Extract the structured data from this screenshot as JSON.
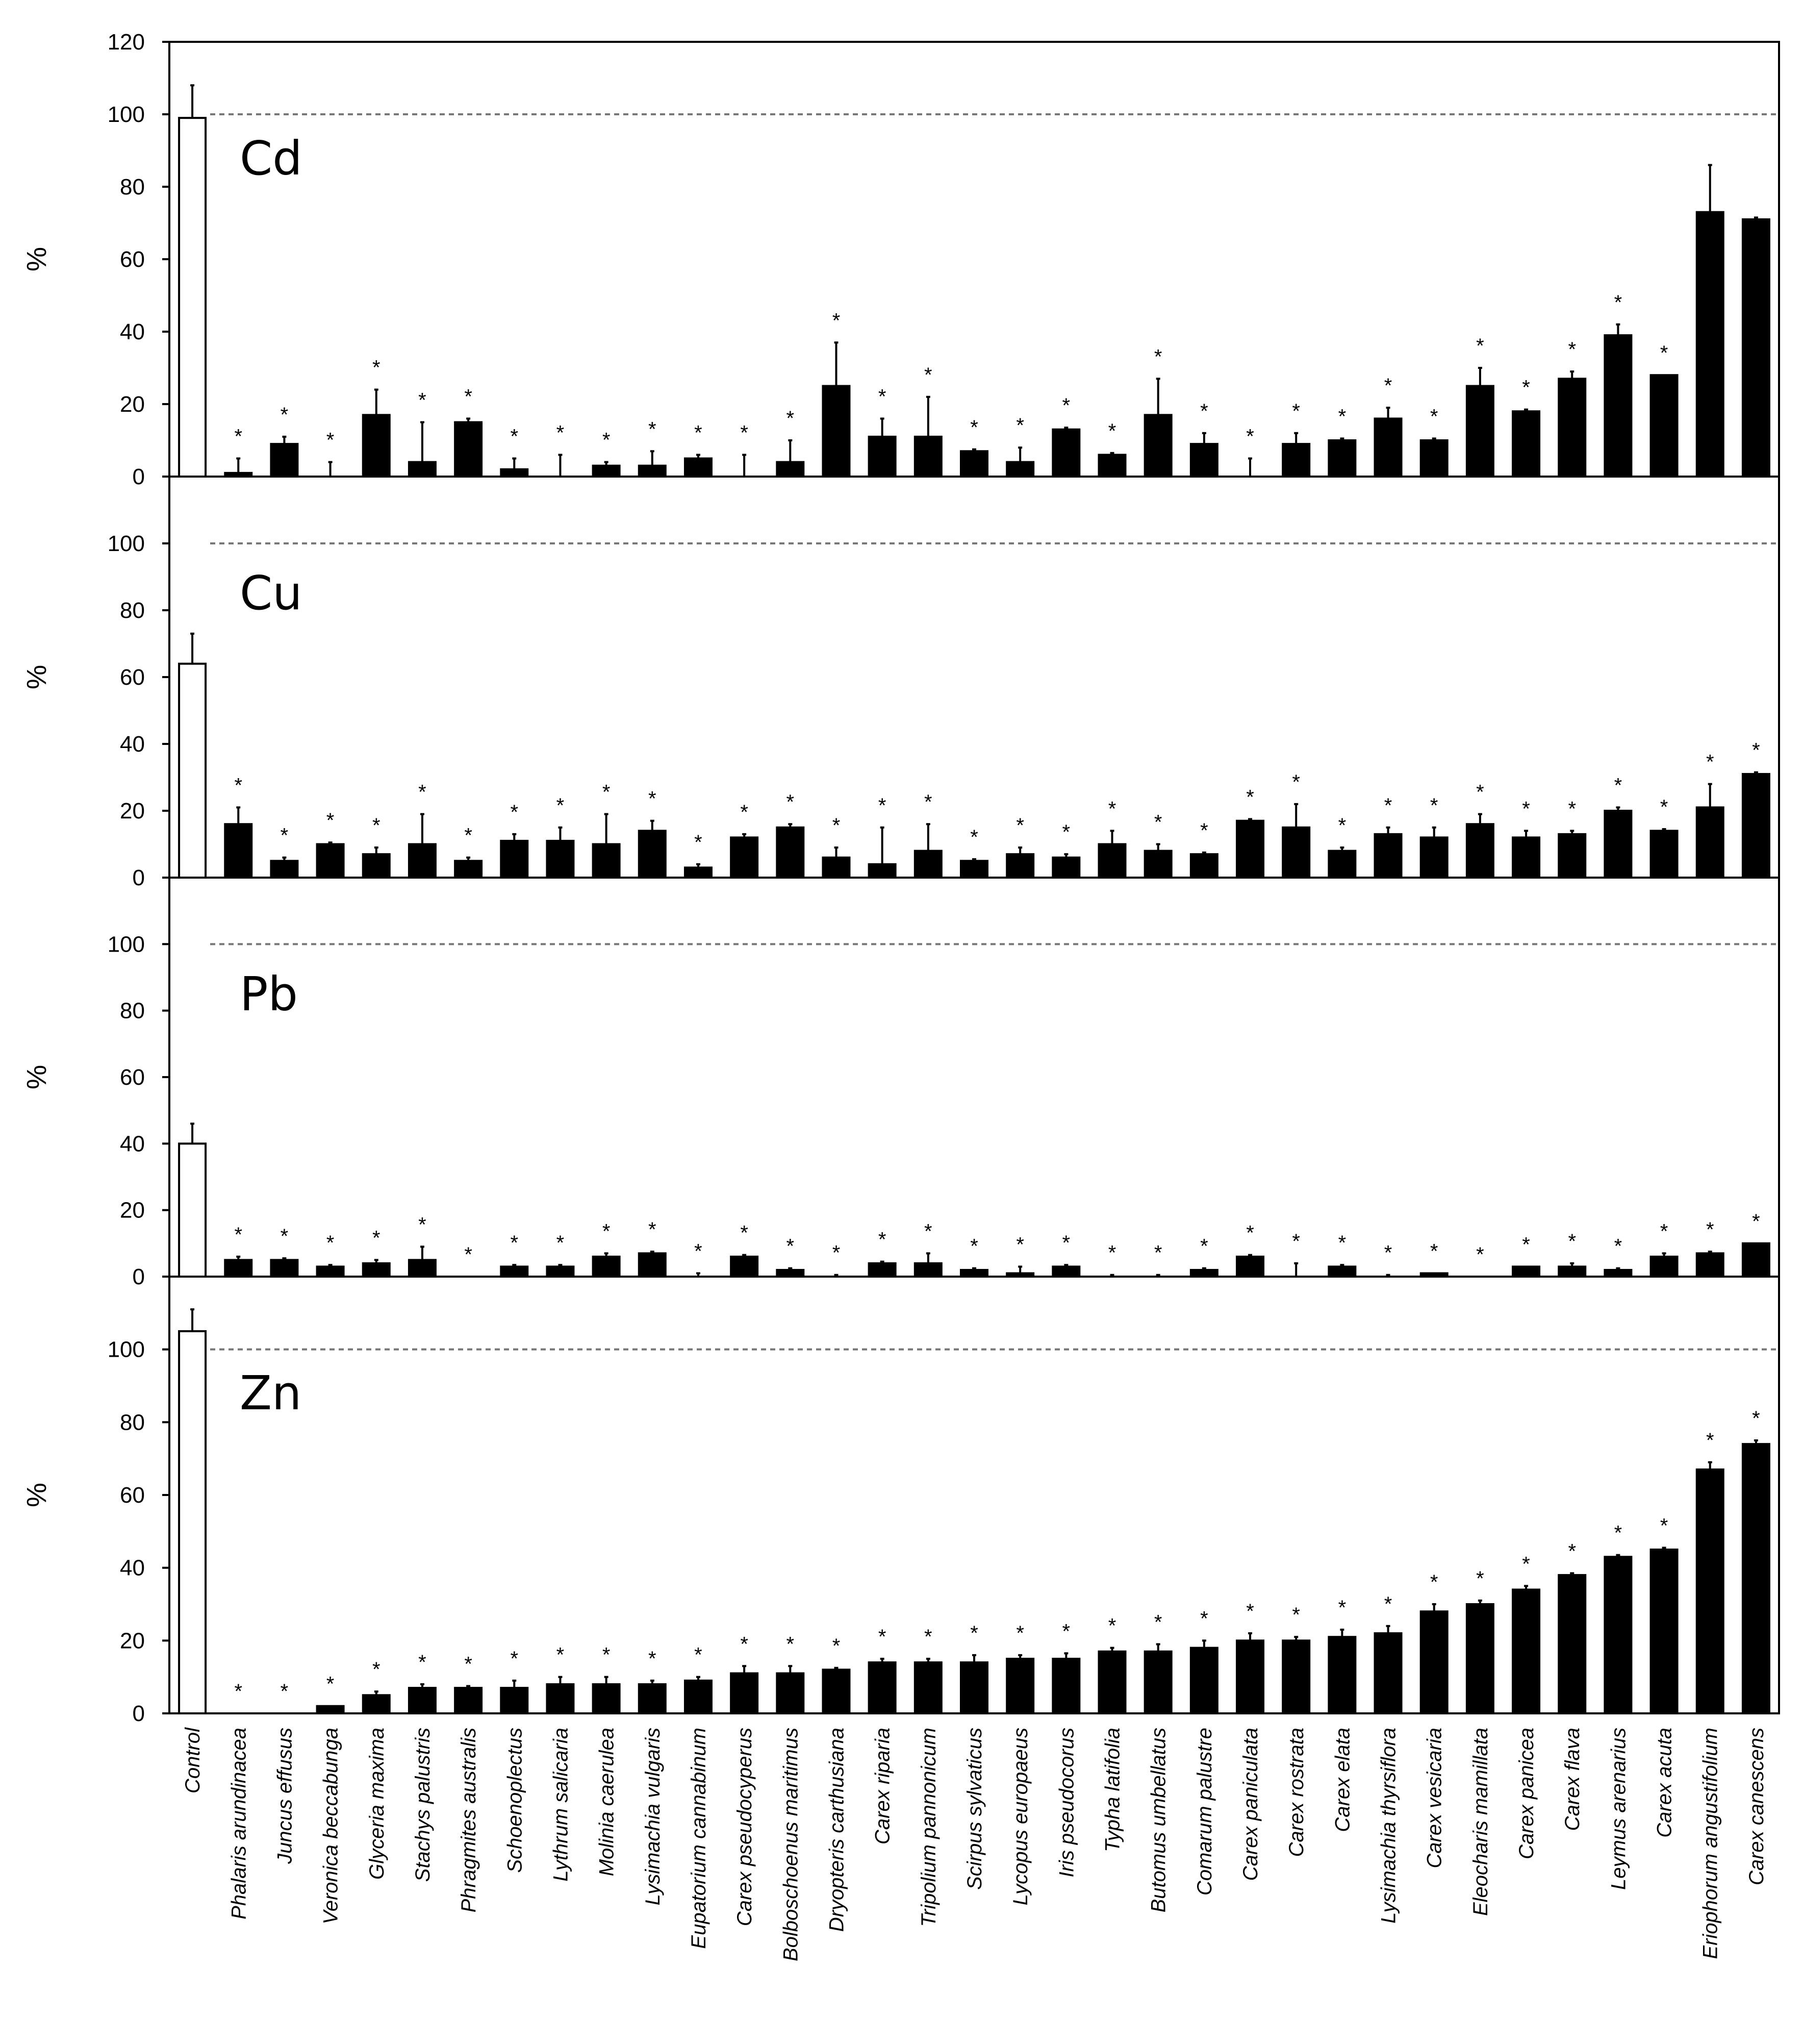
{
  "chart_data": [
    {
      "type": "bar",
      "label": "Cd",
      "y_label": "%",
      "ylim": [
        0,
        120
      ],
      "yticks": [
        0,
        20,
        40,
        60,
        80,
        100,
        120
      ],
      "reference": 100,
      "values": [
        99,
        1,
        9,
        0,
        17,
        4,
        15,
        2,
        0,
        3,
        3,
        5,
        0,
        4,
        25,
        11,
        11,
        7,
        4,
        13,
        6,
        17,
        9,
        0,
        9,
        10,
        16,
        10,
        25,
        18,
        27,
        39,
        28,
        73,
        71
      ],
      "errors": [
        9,
        4,
        2,
        4,
        7,
        11,
        1,
        3,
        6,
        1,
        4,
        1,
        6,
        6,
        12,
        5,
        11,
        0.5,
        4,
        0.5,
        0.5,
        10,
        3,
        5,
        3,
        0.5,
        3,
        0.5,
        5,
        0.5,
        2,
        3,
        0,
        13,
        0.5
      ],
      "markers": [
        null,
        "*",
        "*",
        "*",
        "*",
        "*",
        "*",
        "*",
        "*",
        "*",
        "*",
        "*",
        "*",
        "*",
        "*",
        "*",
        "*",
        "*",
        "*",
        "*",
        "*",
        "*",
        "*",
        "*",
        "*",
        "*",
        "*",
        "*",
        "*",
        "*",
        "*",
        "*",
        "*",
        null,
        null
      ],
      "colors": [
        "#ffffff",
        "#000000",
        "#000000",
        "#000000",
        "#000000",
        "#000000",
        "#000000",
        "#000000",
        "#000000",
        "#000000",
        "#000000",
        "#000000",
        "#000000",
        "#000000",
        "#000000",
        "#000000",
        "#000000",
        "#000000",
        "#000000",
        "#000000",
        "#000000",
        "#000000",
        "#000000",
        "#000000",
        "#000000",
        "#000000",
        "#000000",
        "#000000",
        "#000000",
        "#000000",
        "#000000",
        "#000000",
        "#000000",
        "#000000",
        "#000000"
      ]
    },
    {
      "type": "bar",
      "label": "Cu",
      "y_label": "%",
      "ylim": [
        0,
        120
      ],
      "yticks": [
        0,
        20,
        40,
        60,
        80,
        100
      ],
      "reference": 100,
      "values": [
        64,
        16,
        5,
        10,
        7,
        10,
        5,
        11,
        11,
        10,
        14,
        3,
        12,
        15,
        6,
        4,
        8,
        5,
        7,
        6,
        10,
        8,
        7,
        17,
        15,
        8,
        13,
        12,
        16,
        12,
        13,
        20,
        14,
        21,
        31
      ],
      "errors": [
        9,
        5,
        1,
        0.5,
        2,
        9,
        1,
        2,
        4,
        9,
        3,
        1,
        1,
        1,
        3,
        11,
        8,
        0.5,
        2,
        1,
        4,
        2,
        0.5,
        0.5,
        7,
        1,
        2,
        3,
        3,
        2,
        1,
        1,
        0.5,
        7,
        0.5
      ],
      "markers": [
        null,
        "*",
        "*",
        "*",
        "*",
        "*",
        "*",
        "*",
        "*",
        "*",
        "*",
        "*",
        "*",
        "*",
        "*",
        "*",
        "*",
        "*",
        "*",
        "*",
        "*",
        "*",
        "*",
        "*",
        "*",
        "*",
        "*",
        "*",
        "*",
        "*",
        "*",
        "*",
        "*",
        "*",
        "*"
      ],
      "colors": [
        "#ffffff",
        "#000000",
        "#000000",
        "#000000",
        "#000000",
        "#000000",
        "#000000",
        "#000000",
        "#000000",
        "#000000",
        "#000000",
        "#000000",
        "#000000",
        "#000000",
        "#000000",
        "#000000",
        "#000000",
        "#000000",
        "#000000",
        "#000000",
        "#000000",
        "#000000",
        "#000000",
        "#000000",
        "#000000",
        "#000000",
        "#000000",
        "#000000",
        "#000000",
        "#000000",
        "#000000",
        "#000000",
        "#000000",
        "#000000",
        "#000000"
      ]
    },
    {
      "type": "bar",
      "label": "Pb",
      "y_label": "%",
      "ylim": [
        0,
        120
      ],
      "yticks": [
        0,
        20,
        40,
        60,
        80,
        100
      ],
      "reference": 100,
      "values": [
        40,
        5,
        5,
        3,
        4,
        5,
        0,
        3,
        3,
        6,
        7,
        0,
        6,
        2,
        0,
        4,
        4,
        2,
        1,
        3,
        0,
        0,
        2,
        6,
        0,
        3,
        0,
        1,
        0,
        3,
        3,
        2,
        6,
        7,
        10
      ],
      "errors": [
        6,
        1,
        0.5,
        0.5,
        1,
        4,
        0,
        0.5,
        0.5,
        1,
        0.5,
        1,
        0.5,
        0.5,
        0.5,
        0.5,
        3,
        0.5,
        2,
        0.5,
        0.5,
        0.5,
        0.5,
        0.5,
        4,
        0.5,
        0.5,
        0,
        0,
        0,
        1,
        0.5,
        1,
        0.5,
        0
      ],
      "markers": [
        null,
        "*",
        "*",
        "*",
        "*",
        "*",
        "*",
        "*",
        "*",
        "*",
        "*",
        "*",
        "*",
        "*",
        "*",
        "*",
        "*",
        "*",
        "*",
        "*",
        "*",
        "*",
        "*",
        "*",
        "*",
        "*",
        "*",
        "*",
        "*",
        "*",
        "*",
        "*",
        "*",
        "*",
        "*"
      ],
      "colors": [
        "#ffffff",
        "#000000",
        "#000000",
        "#000000",
        "#000000",
        "#000000",
        "#000000",
        "#000000",
        "#000000",
        "#000000",
        "#000000",
        "#000000",
        "#000000",
        "#000000",
        "#000000",
        "#000000",
        "#000000",
        "#000000",
        "#000000",
        "#000000",
        "#000000",
        "#000000",
        "#000000",
        "#000000",
        "#000000",
        "#000000",
        "#000000",
        "#000000",
        "#000000",
        "#000000",
        "#000000",
        "#000000",
        "#000000",
        "#000000",
        "#000000"
      ]
    },
    {
      "type": "bar",
      "label": "Zn",
      "y_label": "%",
      "ylim": [
        0,
        120
      ],
      "yticks": [
        0,
        20,
        40,
        60,
        80,
        100
      ],
      "reference": 100,
      "categories": [
        "Control",
        "Phalaris arundinacea",
        "Juncus effusus",
        "Veronica beccabunga",
        "Glyceria maxima",
        "Stachys palustris",
        "Phragmites australis",
        "Schoenoplectus",
        "Lythrum salicaria",
        "Molinia caerulea",
        "Lysimachia vulgaris",
        "Eupatorium cannabinum",
        "Carex pseudocyperus",
        "Bolboschoenus maritimus",
        "Dryopteris carthusiana",
        "Carex riparia",
        "Tripolium pannonicum",
        "Scirpus sylvaticus",
        "Lycopus europaeus",
        "Iris pseudocorus",
        "Typha latifolia",
        "Butomus umbellatus",
        "Comarum palustre",
        "Carex paniculata",
        "Carex rostrata",
        "Carex elata",
        "Lysimachia thyrsiflora",
        "Carex vesicaria",
        "Eleocharis mamillata",
        "Carex panicea",
        "Carex flava",
        "Leymus arenarius",
        "Carex acuta",
        "Eriophorum angustifolium",
        "Carex canescens"
      ],
      "values": [
        105,
        0,
        0,
        2,
        5,
        7,
        7,
        7,
        8,
        8,
        8,
        9,
        11,
        11,
        12,
        14,
        14,
        14,
        15,
        15,
        17,
        17,
        18,
        20,
        20,
        21,
        22,
        28,
        30,
        34,
        38,
        43,
        45,
        67,
        74
      ],
      "errors": [
        6,
        0,
        0,
        0,
        1,
        1,
        0.5,
        2,
        2,
        2,
        1,
        1,
        2,
        2,
        0.5,
        1,
        1,
        2,
        1,
        1.5,
        1,
        2,
        2,
        2,
        1,
        2,
        2,
        2,
        1,
        1,
        0.5,
        0.5,
        0.5,
        2,
        1
      ],
      "markers": [
        null,
        "*",
        "*",
        "*",
        "*",
        "*",
        "*",
        "*",
        "*",
        "*",
        "*",
        "*",
        "*",
        "*",
        "*",
        "*",
        "*",
        "*",
        "*",
        "*",
        "*",
        "*",
        "*",
        "*",
        "*",
        "*",
        "*",
        "*",
        "*",
        "*",
        "*",
        "*",
        "*",
        "*",
        "*"
      ],
      "colors": [
        "#ffffff",
        "#000000",
        "#000000",
        "#000000",
        "#000000",
        "#000000",
        "#000000",
        "#000000",
        "#000000",
        "#000000",
        "#000000",
        "#000000",
        "#000000",
        "#000000",
        "#000000",
        "#000000",
        "#000000",
        "#000000",
        "#000000",
        "#000000",
        "#000000",
        "#000000",
        "#000000",
        "#000000",
        "#000000",
        "#000000",
        "#000000",
        "#000000",
        "#000000",
        "#000000",
        "#000000",
        "#000000",
        "#000000",
        "#000000",
        "#000000"
      ]
    }
  ]
}
